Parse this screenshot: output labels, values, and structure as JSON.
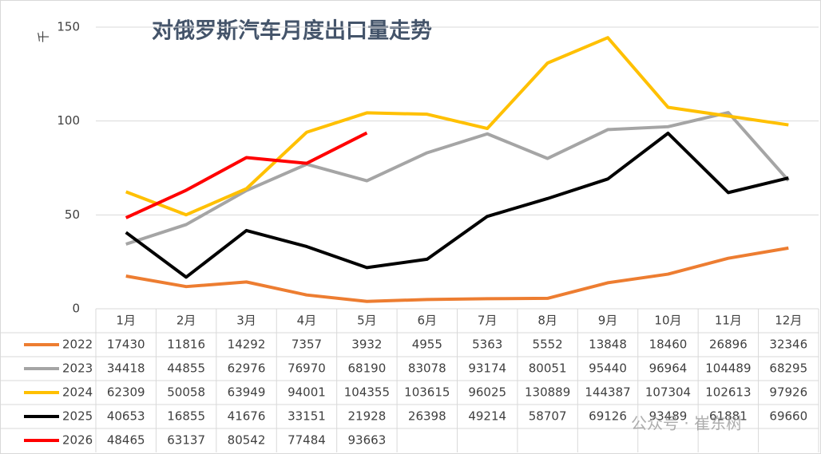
{
  "chart_data": {
    "type": "line",
    "title": "对俄罗斯汽车月度出口量走势",
    "y_axis_label": "千",
    "watermark": "公众号 · 崔东树",
    "categories": [
      "1月",
      "2月",
      "3月",
      "4月",
      "5月",
      "6月",
      "7月",
      "8月",
      "9月",
      "10月",
      "11月",
      "12月"
    ],
    "ylim": [
      0,
      150
    ],
    "yticks": [
      0,
      50,
      100,
      150
    ],
    "grid": true,
    "series": [
      {
        "name": "2022",
        "color": "#ed7d31",
        "values": [
          17.43,
          11.816,
          14.292,
          7.357,
          3.932,
          4.955,
          5.363,
          5.552,
          13.848,
          18.46,
          26.896,
          32.346
        ],
        "value_labels": [
          "17430",
          "11816",
          "14292",
          "7357",
          "3932",
          "4955",
          "5363",
          "5552",
          "13848",
          "18460",
          "26896",
          "32346"
        ]
      },
      {
        "name": "2023",
        "color": "#a5a5a5",
        "values": [
          34.418,
          44.855,
          62.976,
          76.97,
          68.19,
          83.078,
          93.174,
          80.051,
          95.44,
          96.964,
          104.489,
          68.295
        ],
        "value_labels": [
          "34418",
          "44855",
          "62976",
          "76970",
          "68190",
          "83078",
          "93174",
          "80051",
          "95440",
          "96964",
          "104489",
          "68295"
        ]
      },
      {
        "name": "2024",
        "color": "#ffc000",
        "values": [
          62.309,
          50.058,
          63.949,
          94.001,
          104.355,
          103.615,
          96.025,
          130.889,
          144.387,
          107.304,
          102.613,
          97.926
        ],
        "value_labels": [
          "62309",
          "50058",
          "63949",
          "94001",
          "104355",
          "103615",
          "96025",
          "130889",
          "144387",
          "107304",
          "102613",
          "97926"
        ]
      },
      {
        "name": "2025",
        "color": "#000000",
        "values": [
          40.653,
          16.855,
          41.676,
          33.151,
          21.928,
          26.398,
          49.214,
          58.707,
          69.126,
          93.489,
          61.881,
          69.66
        ],
        "value_labels": [
          "40653",
          "16855",
          "41676",
          "33151",
          "21928",
          "26398",
          "49214",
          "58707",
          "69126",
          "93489",
          "61881",
          "69660"
        ]
      },
      {
        "name": "2026",
        "color": "#ff0000",
        "values": [
          48.465,
          63.137,
          80.542,
          77.484,
          93.663,
          null,
          null,
          null,
          null,
          null,
          null,
          null
        ],
        "value_labels": [
          "48465",
          "63137",
          "80542",
          "77484",
          "93663",
          null,
          null,
          null,
          null,
          null,
          null,
          null
        ]
      }
    ]
  }
}
